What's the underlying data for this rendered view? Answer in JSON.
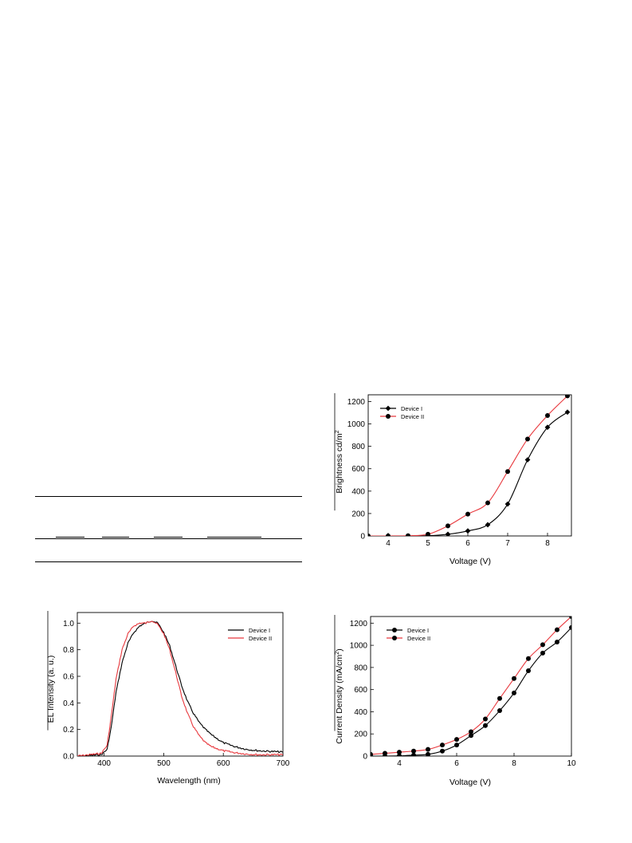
{
  "table_rules": true,
  "chart_data": [
    {
      "id": "brightness",
      "type": "line",
      "xlabel": "Voltage (V)",
      "ylabel_main": "Brightness cd/m",
      "ylabel_sup": "2",
      "xlim": [
        3.5,
        8.6
      ],
      "ylim": [
        0,
        1260
      ],
      "xticks": [
        4,
        5,
        6,
        7,
        8
      ],
      "yticks": [
        0,
        200,
        400,
        600,
        800,
        1000,
        1200
      ],
      "legend_position": "top-left",
      "series": [
        {
          "name": "Device I",
          "color": "#000000",
          "marker": "diamond",
          "x": [
            3.5,
            4.0,
            4.5,
            5.0,
            5.5,
            6.0,
            6.5,
            7.0,
            7.5,
            8.0,
            8.5
          ],
          "y": [
            0,
            0,
            0,
            2,
            15,
            45,
            100,
            285,
            680,
            970,
            1105
          ]
        },
        {
          "name": "Device II",
          "color": "#e8383d",
          "marker": "circle",
          "x": [
            3.5,
            4.0,
            4.5,
            5.0,
            5.5,
            6.0,
            6.5,
            7.0,
            7.5,
            8.0,
            8.5
          ],
          "y": [
            0,
            0,
            2,
            15,
            90,
            195,
            295,
            575,
            865,
            1075,
            1250
          ]
        }
      ]
    },
    {
      "id": "el",
      "type": "line",
      "xlabel": "Wavelength (nm)",
      "ylabel": "EL Intensity (a. u.)",
      "xlim": [
        355,
        700
      ],
      "ylim": [
        0,
        1.08
      ],
      "xticks": [
        400,
        500,
        600,
        700
      ],
      "yticks": [
        0.0,
        0.2,
        0.4,
        0.6,
        0.8,
        1.0
      ],
      "ytick_labels": [
        "0.0",
        "0.2",
        "0.4",
        "0.6",
        "0.8",
        "1.0"
      ],
      "legend_position": "top-right",
      "series": [
        {
          "name": "Device I",
          "color": "#000000",
          "x": [
            355,
            395,
            405,
            412,
            420,
            430,
            440,
            450,
            460,
            470,
            480,
            490,
            500,
            510,
            520,
            530,
            540,
            550,
            560,
            570,
            580,
            600,
            620,
            640,
            660,
            680,
            700
          ],
          "y": [
            0.0,
            0.01,
            0.05,
            0.22,
            0.48,
            0.7,
            0.85,
            0.93,
            0.98,
            1.0,
            1.02,
            1.0,
            0.93,
            0.83,
            0.68,
            0.53,
            0.41,
            0.32,
            0.25,
            0.2,
            0.16,
            0.1,
            0.07,
            0.05,
            0.04,
            0.035,
            0.03
          ]
        },
        {
          "name": "Device II",
          "color": "#e8383d",
          "x": [
            355,
            395,
            405,
            412,
            420,
            430,
            440,
            450,
            460,
            470,
            480,
            490,
            500,
            510,
            520,
            530,
            540,
            550,
            560,
            570,
            580,
            600,
            620,
            640,
            660,
            680,
            700
          ],
          "y": [
            0.0,
            0.02,
            0.08,
            0.3,
            0.58,
            0.8,
            0.92,
            0.98,
            1.0,
            1.0,
            1.02,
            0.99,
            0.92,
            0.8,
            0.63,
            0.45,
            0.32,
            0.22,
            0.15,
            0.1,
            0.07,
            0.04,
            0.025,
            0.015,
            0.01,
            0.01,
            0.01
          ]
        }
      ]
    },
    {
      "id": "current",
      "type": "line",
      "xlabel": "Voltage (V)",
      "ylabel_main": "Current Density (mA/cm",
      "ylabel_sup": "2",
      "ylabel_tail": ")",
      "xlim": [
        3,
        10
      ],
      "ylim": [
        0,
        1260
      ],
      "xticks": [
        4,
        6,
        8,
        10
      ],
      "yticks": [
        0,
        200,
        400,
        600,
        800,
        1000,
        1200
      ],
      "legend_position": "top-left",
      "series": [
        {
          "name": "Device I",
          "color": "#000000",
          "marker": "circle",
          "x": [
            3.0,
            3.5,
            4.0,
            4.5,
            5.0,
            5.5,
            6.0,
            6.5,
            7.0,
            7.5,
            8.0,
            8.5,
            9.0,
            9.5,
            10.0
          ],
          "y": [
            0,
            0,
            2,
            8,
            15,
            45,
            100,
            185,
            275,
            410,
            570,
            770,
            930,
            1030,
            1160
          ]
        },
        {
          "name": "Device II",
          "color": "#e8383d",
          "marker": "circle",
          "x": [
            3.0,
            3.5,
            4.0,
            4.5,
            5.0,
            5.5,
            6.0,
            6.5,
            7.0,
            7.5,
            8.0,
            8.5,
            9.0,
            9.5,
            10.0
          ],
          "y": [
            15,
            25,
            35,
            45,
            60,
            100,
            150,
            220,
            335,
            520,
            700,
            880,
            1005,
            1140,
            1260
          ]
        }
      ]
    }
  ]
}
